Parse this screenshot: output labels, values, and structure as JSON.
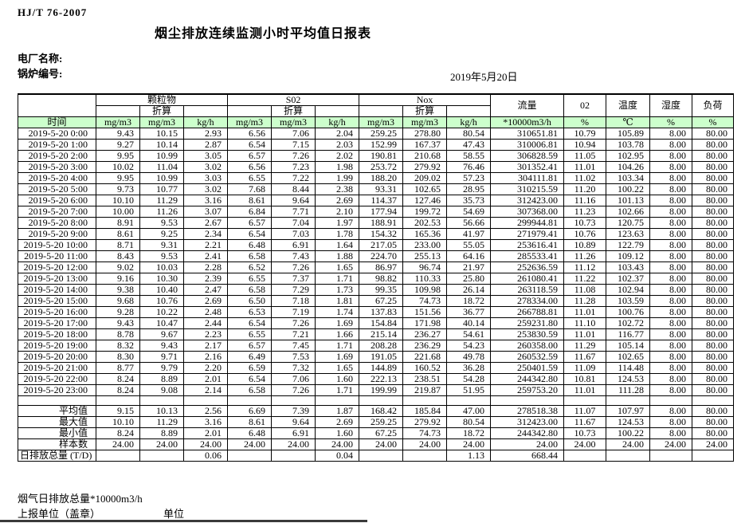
{
  "doc": {
    "standard": "HJ/T  76-2007",
    "title": "烟尘排放连续监测小时平均值日报表",
    "plant_label": "电厂名称:",
    "boiler_label": "锅炉编号:",
    "date": "2019年5月20日"
  },
  "colors": {
    "header_green": "#ccffcc",
    "border": "#000000"
  },
  "table": {
    "time_header": "时间",
    "groups": [
      {
        "label": "颗粒物",
        "sub": [
          "",
          "折算",
          ""
        ],
        "units": [
          "mg/m3",
          "mg/m3",
          "kg/h"
        ]
      },
      {
        "label": "S02",
        "sub": [
          "",
          "折算",
          ""
        ],
        "units": [
          "mg/m3",
          "mg/m3",
          "kg/h"
        ]
      },
      {
        "label": "Nox",
        "sub": [
          "",
          "折算",
          ""
        ],
        "units": [
          "mg/m3",
          "mg/m3",
          "kg/h"
        ]
      }
    ],
    "single_columns": [
      {
        "label": "流量",
        "unit": "*10000m3/h"
      },
      {
        "label": "02",
        "unit": "%"
      },
      {
        "label": "温度",
        "unit": "℃"
      },
      {
        "label": "湿度",
        "unit": "%"
      },
      {
        "label": "负荷",
        "unit": "%"
      }
    ],
    "rows": [
      {
        "time": "2019-5-20 0:00",
        "values": [
          "9.43",
          "10.15",
          "2.93",
          "6.56",
          "7.06",
          "2.04",
          "259.25",
          "278.80",
          "80.54",
          "310651.81",
          "10.79",
          "105.89",
          "8.00",
          "80.00"
        ]
      },
      {
        "time": "2019-5-20 1:00",
        "values": [
          "9.27",
          "10.14",
          "2.87",
          "6.54",
          "7.15",
          "2.03",
          "152.99",
          "167.37",
          "47.43",
          "310006.81",
          "10.94",
          "103.78",
          "8.00",
          "80.00"
        ]
      },
      {
        "time": "2019-5-20 2:00",
        "values": [
          "9.95",
          "10.99",
          "3.05",
          "6.57",
          "7.26",
          "2.02",
          "190.81",
          "210.68",
          "58.55",
          "306828.59",
          "11.05",
          "102.95",
          "8.00",
          "80.00"
        ]
      },
      {
        "time": "2019-5-20 3:00",
        "values": [
          "10.02",
          "11.04",
          "3.02",
          "6.56",
          "7.23",
          "1.98",
          "253.72",
          "279.92",
          "76.46",
          "301352.41",
          "11.01",
          "104.26",
          "8.00",
          "80.00"
        ]
      },
      {
        "time": "2019-5-20 4:00",
        "values": [
          "9.95",
          "10.99",
          "3.03",
          "6.55",
          "7.22",
          "1.99",
          "188.20",
          "209.02",
          "57.23",
          "304111.81",
          "11.02",
          "103.34",
          "8.00",
          "80.00"
        ]
      },
      {
        "time": "2019-5-20 5:00",
        "values": [
          "9.73",
          "10.77",
          "3.02",
          "7.68",
          "8.44",
          "2.38",
          "93.31",
          "102.65",
          "28.95",
          "310215.59",
          "11.20",
          "100.22",
          "8.00",
          "80.00"
        ]
      },
      {
        "time": "2019-5-20 6:00",
        "values": [
          "10.10",
          "11.29",
          "3.16",
          "8.61",
          "9.64",
          "2.69",
          "114.37",
          "127.46",
          "35.73",
          "312423.00",
          "11.16",
          "101.13",
          "8.00",
          "80.00"
        ]
      },
      {
        "time": "2019-5-20 7:00",
        "values": [
          "10.00",
          "11.26",
          "3.07",
          "6.84",
          "7.71",
          "2.10",
          "177.94",
          "199.72",
          "54.69",
          "307368.00",
          "11.23",
          "102.66",
          "8.00",
          "80.00"
        ]
      },
      {
        "time": "2019-5-20 8:00",
        "values": [
          "8.91",
          "9.53",
          "2.67",
          "6.57",
          "7.04",
          "1.97",
          "188.91",
          "202.53",
          "56.66",
          "299944.81",
          "10.73",
          "120.75",
          "8.00",
          "80.00"
        ]
      },
      {
        "time": "2019-5-20 9:00",
        "values": [
          "8.61",
          "9.25",
          "2.34",
          "6.54",
          "7.03",
          "1.78",
          "154.32",
          "165.36",
          "41.97",
          "271979.41",
          "10.76",
          "123.63",
          "8.00",
          "80.00"
        ]
      },
      {
        "time": "2019-5-20 10:00",
        "values": [
          "8.71",
          "9.31",
          "2.21",
          "6.48",
          "6.91",
          "1.64",
          "217.05",
          "233.00",
          "55.05",
          "253616.41",
          "10.89",
          "122.79",
          "8.00",
          "80.00"
        ]
      },
      {
        "time": "2019-5-20 11:00",
        "values": [
          "8.43",
          "9.53",
          "2.41",
          "6.58",
          "7.43",
          "1.88",
          "224.70",
          "255.13",
          "64.16",
          "285533.41",
          "11.26",
          "109.12",
          "8.00",
          "80.00"
        ]
      },
      {
        "time": "2019-5-20 12:00",
        "values": [
          "9.02",
          "10.03",
          "2.28",
          "6.52",
          "7.26",
          "1.65",
          "86.97",
          "96.74",
          "21.97",
          "252636.59",
          "11.12",
          "103.43",
          "8.00",
          "80.00"
        ]
      },
      {
        "time": "2019-5-20 13:00",
        "values": [
          "9.16",
          "10.30",
          "2.39",
          "6.55",
          "7.37",
          "1.71",
          "98.82",
          "110.33",
          "25.80",
          "261080.41",
          "11.22",
          "102.37",
          "8.00",
          "80.00"
        ]
      },
      {
        "time": "2019-5-20 14:00",
        "values": [
          "9.38",
          "10.40",
          "2.47",
          "6.58",
          "7.29",
          "1.73",
          "99.35",
          "109.98",
          "26.14",
          "263118.59",
          "11.08",
          "102.94",
          "8.00",
          "80.00"
        ]
      },
      {
        "time": "2019-5-20 15:00",
        "values": [
          "9.68",
          "10.76",
          "2.69",
          "6.50",
          "7.18",
          "1.81",
          "67.25",
          "74.73",
          "18.72",
          "278334.00",
          "11.28",
          "103.59",
          "8.00",
          "80.00"
        ]
      },
      {
        "time": "2019-5-20 16:00",
        "values": [
          "9.28",
          "10.22",
          "2.48",
          "6.53",
          "7.19",
          "1.74",
          "137.83",
          "151.56",
          "36.77",
          "266788.81",
          "11.01",
          "100.76",
          "8.00",
          "80.00"
        ]
      },
      {
        "time": "2019-5-20 17:00",
        "values": [
          "9.43",
          "10.47",
          "2.44",
          "6.54",
          "7.26",
          "1.69",
          "154.84",
          "171.98",
          "40.14",
          "259231.80",
          "11.10",
          "102.72",
          "8.00",
          "80.00"
        ]
      },
      {
        "time": "2019-5-20 18:00",
        "values": [
          "8.78",
          "9.67",
          "2.23",
          "6.55",
          "7.21",
          "1.66",
          "215.14",
          "236.27",
          "54.61",
          "253830.59",
          "11.01",
          "116.77",
          "8.00",
          "80.00"
        ]
      },
      {
        "time": "2019-5-20 19:00",
        "values": [
          "8.32",
          "9.43",
          "2.17",
          "6.57",
          "7.45",
          "1.71",
          "208.28",
          "236.29",
          "54.23",
          "260358.00",
          "11.29",
          "105.14",
          "8.00",
          "80.00"
        ]
      },
      {
        "time": "2019-5-20 20:00",
        "values": [
          "8.30",
          "9.71",
          "2.16",
          "6.49",
          "7.53",
          "1.69",
          "191.05",
          "221.68",
          "49.78",
          "260532.59",
          "11.67",
          "102.65",
          "8.00",
          "80.00"
        ]
      },
      {
        "time": "2019-5-20 21:00",
        "values": [
          "8.77",
          "9.79",
          "2.20",
          "6.59",
          "7.32",
          "1.65",
          "144.89",
          "160.52",
          "36.28",
          "250401.59",
          "11.09",
          "114.48",
          "8.00",
          "80.00"
        ]
      },
      {
        "time": "2019-5-20 22:00",
        "values": [
          "8.24",
          "8.89",
          "2.01",
          "6.54",
          "7.06",
          "1.60",
          "222.13",
          "238.51",
          "54.28",
          "244342.80",
          "10.81",
          "124.53",
          "8.00",
          "80.00"
        ]
      },
      {
        "time": "2019-5-20 23:00",
        "values": [
          "8.24",
          "9.08",
          "2.14",
          "6.58",
          "7.26",
          "1.71",
          "199.99",
          "219.87",
          "51.95",
          "259753.20",
          "11.01",
          "111.28",
          "8.00",
          "80.00"
        ]
      }
    ],
    "summary": [
      {
        "label": "平均值",
        "total": false,
        "values": [
          "9.15",
          "10.13",
          "2.56",
          "6.69",
          "7.39",
          "1.87",
          "168.42",
          "185.84",
          "47.00",
          "278518.38",
          "11.07",
          "107.97",
          "8.00",
          "80.00"
        ]
      },
      {
        "label": "最大值",
        "total": false,
        "values": [
          "10.10",
          "11.29",
          "3.16",
          "8.61",
          "9.64",
          "2.69",
          "259.25",
          "279.92",
          "80.54",
          "312423.00",
          "11.67",
          "124.53",
          "8.00",
          "80.00"
        ]
      },
      {
        "label": "最小值",
        "total": false,
        "values": [
          "8.24",
          "8.89",
          "2.01",
          "6.48",
          "6.91",
          "1.60",
          "67.25",
          "74.73",
          "18.72",
          "244342.80",
          "10.73",
          "100.22",
          "8.00",
          "80.00"
        ]
      },
      {
        "label": "样本数",
        "total": false,
        "values": [
          "24.00",
          "24.00",
          "24.00",
          "24.00",
          "24.00",
          "24.00",
          "24.00",
          "24.00",
          "24.00",
          "24.00",
          "24.00",
          "24.00",
          "24.00",
          "24.00"
        ]
      },
      {
        "label": "日排放总量 (T/D)",
        "total": true,
        "values": [
          "",
          "",
          "0.06",
          "",
          "",
          "0.04",
          "",
          "",
          "1.13",
          "668.44",
          "",
          "",
          "",
          ""
        ]
      }
    ]
  },
  "footer": {
    "flue_total": "烟气日排放总量*10000m3/h",
    "report_unit": "上报单位（盖章）",
    "unit": "单位"
  }
}
